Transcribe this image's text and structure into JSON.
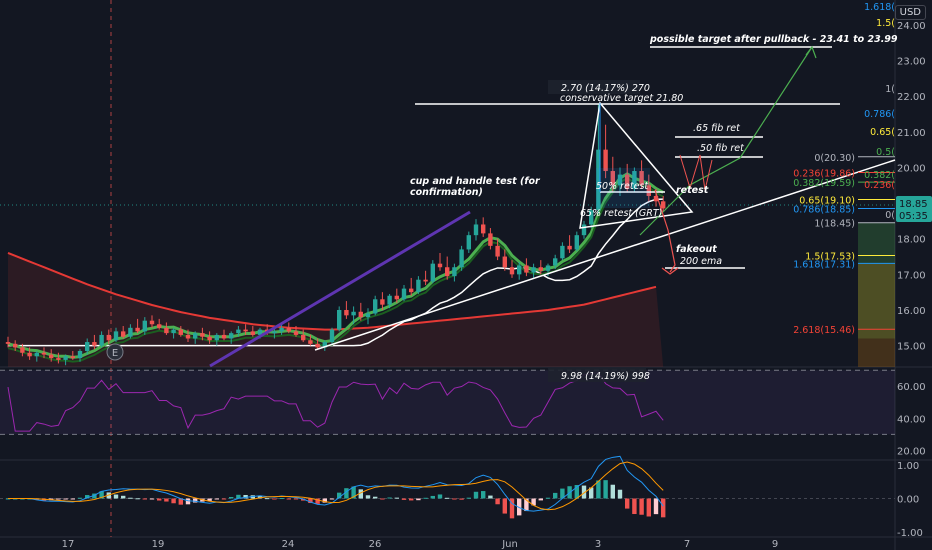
{
  "currency": "USD",
  "colors": {
    "bg": "#131722",
    "up": "#26a69a",
    "down": "#ef5350",
    "ema200": "#e53935",
    "whiteline": "#ffffff",
    "green": "#4caf50",
    "purple": "#5e35b1",
    "rsi": "#9c27b0",
    "macd": "#2196f3",
    "signal": "#ff9800"
  },
  "xaxis": {
    "labels": [
      "17",
      "19",
      "24",
      "26",
      "Jun",
      "3",
      "7",
      "9"
    ]
  },
  "price_axis": {
    "labels": [
      "24.00",
      "23.00",
      "22.00",
      "21.00",
      "20.00",
      "19.00",
      "18.00",
      "17.00",
      "16.00",
      "15.00"
    ]
  },
  "rsi_axis": {
    "labels": [
      "60.00",
      "40.00",
      "20.00"
    ]
  },
  "macd_axis": {
    "labels": [
      "1.00",
      "0.00",
      "-1.00"
    ]
  },
  "last_price": {
    "price": "18.85",
    "countdown": "05:35"
  },
  "annotations": {
    "cup_handle": "cup and handle test (for confirmation)",
    "possible_target": "possible target after pullback - 23.41 to 23.99",
    "conservative_target": "conservative target 21.80",
    "measure_top": "2.70 (14.17%) 270",
    "measure_rsi": "9.98 (14.19%) 998",
    "fib65": ".65 fib ret",
    "fib50": ".50 fib ret",
    "retest50": "50% retest",
    "retest65": "65% retest (GRT)",
    "retest": "retest",
    "fakeout": "fakeout",
    "ema200": "200 ema",
    "e_marker": "E"
  },
  "fib_right": {
    "f1618": "1.618(",
    "f15": "1.5(",
    "f1": "1(",
    "f0786": "0.786(",
    "f065": "0.65(",
    "f05": "0.5(",
    "f0382": "0.382(",
    "f0236": "0.236(",
    "f0": "0("
  },
  "fib_left": {
    "f0": "0(20.30)",
    "f0236": "0.236(19.86)",
    "f0382": "0.382(19.59)",
    "f065": "0.65(19.10)",
    "f0786": "0.786(18.85)",
    "f1": "1(18.45)",
    "f15": "1.5(17.53)",
    "f1618": "1.618(17.31)",
    "f2618": "2.618(15.46)"
  },
  "chart_data": {
    "type": "candlestick",
    "panes": [
      "price",
      "rsi",
      "macd"
    ],
    "price_range": [
      14.4,
      24.7
    ],
    "rsi_range": [
      14,
      72
    ],
    "macd_range": [
      -1.15,
      1.15
    ],
    "rsi_bands": [
      70,
      30
    ],
    "candles": [
      [
        15.1,
        15.25,
        14.95,
        15.05
      ],
      [
        15.05,
        15.15,
        14.85,
        14.95
      ],
      [
        14.95,
        15.05,
        14.7,
        14.8
      ],
      [
        14.8,
        14.95,
        14.6,
        14.7
      ],
      [
        14.7,
        14.85,
        14.55,
        14.8
      ],
      [
        14.8,
        14.95,
        14.65,
        14.75
      ],
      [
        14.75,
        14.9,
        14.55,
        14.65
      ],
      [
        14.65,
        14.8,
        14.5,
        14.6
      ],
      [
        14.6,
        14.75,
        14.45,
        14.7
      ],
      [
        14.7,
        14.85,
        14.6,
        14.65
      ],
      [
        14.65,
        14.9,
        14.55,
        14.85
      ],
      [
        14.85,
        15.2,
        14.75,
        15.1
      ],
      [
        15.1,
        15.3,
        14.9,
        15.0
      ],
      [
        15.0,
        15.4,
        14.95,
        15.3
      ],
      [
        15.3,
        15.45,
        15.05,
        15.15
      ],
      [
        15.15,
        15.5,
        15.1,
        15.4
      ],
      [
        15.4,
        15.55,
        15.2,
        15.25
      ],
      [
        15.25,
        15.6,
        15.2,
        15.5
      ],
      [
        15.5,
        15.75,
        15.35,
        15.4
      ],
      [
        15.4,
        15.8,
        15.3,
        15.7
      ],
      [
        15.7,
        15.85,
        15.5,
        15.6
      ],
      [
        15.6,
        15.75,
        15.45,
        15.5
      ],
      [
        15.5,
        15.65,
        15.3,
        15.35
      ],
      [
        15.35,
        15.5,
        15.2,
        15.45
      ],
      [
        15.45,
        15.55,
        15.25,
        15.3
      ],
      [
        15.3,
        15.45,
        15.1,
        15.2
      ],
      [
        15.2,
        15.4,
        15.05,
        15.35
      ],
      [
        15.35,
        15.5,
        15.15,
        15.25
      ],
      [
        15.25,
        15.4,
        15.05,
        15.15
      ],
      [
        15.15,
        15.35,
        15.0,
        15.3
      ],
      [
        15.3,
        15.45,
        15.15,
        15.2
      ],
      [
        15.2,
        15.4,
        15.05,
        15.35
      ],
      [
        15.35,
        15.55,
        15.25,
        15.45
      ],
      [
        15.45,
        15.6,
        15.3,
        15.4
      ],
      [
        15.4,
        15.55,
        15.25,
        15.3
      ],
      [
        15.3,
        15.5,
        15.2,
        15.45
      ],
      [
        15.45,
        15.6,
        15.3,
        15.35
      ],
      [
        15.35,
        15.5,
        15.2,
        15.4
      ],
      [
        15.4,
        15.6,
        15.3,
        15.5
      ],
      [
        15.5,
        15.65,
        15.35,
        15.4
      ],
      [
        15.4,
        15.55,
        15.25,
        15.3
      ],
      [
        15.3,
        15.45,
        15.1,
        15.15
      ],
      [
        15.15,
        15.3,
        15.0,
        15.05
      ],
      [
        15.05,
        15.2,
        14.9,
        14.95
      ],
      [
        14.95,
        15.15,
        14.85,
        15.1
      ],
      [
        15.1,
        15.5,
        15.05,
        15.45
      ],
      [
        15.45,
        16.1,
        15.4,
        16.0
      ],
      [
        16.0,
        16.25,
        15.75,
        15.85
      ],
      [
        15.85,
        16.1,
        15.6,
        15.95
      ],
      [
        15.95,
        16.2,
        15.7,
        15.8
      ],
      [
        15.8,
        16.05,
        15.6,
        15.9
      ],
      [
        15.9,
        16.4,
        15.85,
        16.3
      ],
      [
        16.3,
        16.5,
        16.0,
        16.15
      ],
      [
        16.15,
        16.45,
        16.05,
        16.4
      ],
      [
        16.4,
        16.6,
        16.2,
        16.3
      ],
      [
        16.3,
        16.7,
        16.25,
        16.6
      ],
      [
        16.6,
        16.9,
        16.4,
        16.5
      ],
      [
        16.5,
        16.95,
        16.45,
        16.85
      ],
      [
        16.85,
        17.1,
        16.7,
        16.8
      ],
      [
        16.8,
        17.4,
        16.75,
        17.3
      ],
      [
        17.3,
        17.6,
        17.1,
        17.2
      ],
      [
        17.2,
        17.5,
        16.85,
        16.95
      ],
      [
        16.95,
        17.3,
        16.8,
        17.2
      ],
      [
        17.2,
        17.8,
        17.1,
        17.7
      ],
      [
        17.7,
        18.2,
        17.6,
        18.1
      ],
      [
        18.1,
        18.55,
        17.95,
        18.4
      ],
      [
        18.4,
        18.6,
        18.05,
        18.15
      ],
      [
        18.15,
        18.3,
        17.7,
        17.8
      ],
      [
        17.8,
        18.0,
        17.4,
        17.5
      ],
      [
        17.5,
        17.7,
        17.1,
        17.2
      ],
      [
        17.2,
        17.4,
        16.9,
        17.0
      ],
      [
        17.0,
        17.35,
        16.85,
        17.25
      ],
      [
        17.25,
        17.45,
        16.95,
        17.05
      ],
      [
        17.05,
        17.3,
        16.9,
        17.2
      ],
      [
        17.2,
        17.4,
        17.0,
        17.1
      ],
      [
        17.1,
        17.3,
        16.95,
        17.25
      ],
      [
        17.25,
        17.55,
        17.15,
        17.45
      ],
      [
        17.45,
        17.9,
        17.4,
        17.8
      ],
      [
        17.8,
        18.1,
        17.6,
        17.7
      ],
      [
        17.7,
        18.2,
        17.65,
        18.1
      ],
      [
        18.1,
        18.5,
        18.0,
        18.4
      ],
      [
        18.4,
        18.9,
        18.3,
        18.8
      ],
      [
        18.8,
        21.8,
        18.7,
        20.5
      ],
      [
        20.5,
        21.2,
        19.7,
        19.9
      ],
      [
        19.9,
        20.3,
        19.3,
        19.5
      ],
      [
        19.5,
        20.0,
        19.2,
        19.8
      ],
      [
        19.8,
        20.1,
        19.3,
        19.4
      ],
      [
        19.4,
        20.0,
        19.3,
        19.9
      ],
      [
        19.9,
        20.2,
        19.4,
        19.5
      ],
      [
        19.5,
        19.8,
        19.05,
        19.2
      ],
      [
        19.2,
        19.4,
        18.9,
        19.05
      ],
      [
        19.05,
        19.2,
        18.75,
        18.85
      ]
    ],
    "ema200": [
      17.6,
      17.52,
      17.44,
      17.36,
      17.28,
      17.2,
      17.12,
      17.04,
      16.96,
      16.88,
      16.8,
      16.72,
      16.65,
      16.58,
      16.51,
      16.44,
      16.38,
      16.32,
      16.26,
      16.2,
      16.14,
      16.09,
      16.04,
      15.99,
      15.94,
      15.9,
      15.86,
      15.82,
      15.78,
      15.75,
      15.72,
      15.69,
      15.66,
      15.63,
      15.6,
      15.58,
      15.56,
      15.54,
      15.52,
      15.5,
      15.49,
      15.48,
      15.47,
      15.46,
      15.45,
      15.45,
      15.46,
      15.47,
      15.48,
      15.49,
      15.5,
      15.52,
      15.54,
      15.56,
      15.58,
      15.6,
      15.62,
      15.64,
      15.66,
      15.68,
      15.7,
      15.72,
      15.74,
      15.76,
      15.78,
      15.8,
      15.82,
      15.84,
      15.86,
      15.88,
      15.9,
      15.92,
      15.94,
      15.96,
      15.98,
      16.0,
      16.03,
      16.06,
      16.09,
      16.12,
      16.15,
      16.2,
      16.25,
      16.3,
      16.35,
      16.4,
      16.45,
      16.5,
      16.55,
      16.6,
      16.65
    ]
  }
}
